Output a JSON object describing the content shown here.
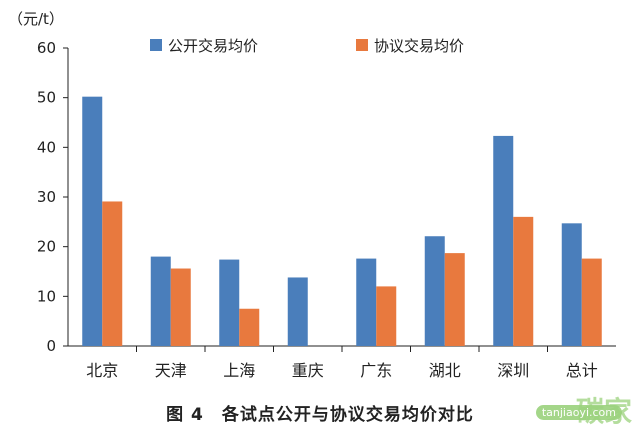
{
  "chart_data": {
    "type": "bar",
    "unit": "（元/t）",
    "categories": [
      "北京",
      "天津",
      "上海",
      "重庆",
      "广东",
      "湖北",
      "深圳",
      "总计"
    ],
    "series": [
      {
        "name": "公开交易均价",
        "color": "#4a7ebb",
        "values": [
          50.2,
          18.0,
          17.4,
          13.8,
          17.6,
          22.1,
          42.3,
          24.7
        ]
      },
      {
        "name": "协议交易均价",
        "color": "#e8793e",
        "values": [
          29.1,
          15.6,
          7.5,
          null,
          12.0,
          18.7,
          26.0,
          17.6
        ]
      }
    ],
    "ylim": [
      0,
      60
    ],
    "yticks": [
      0,
      10,
      20,
      30,
      40,
      50,
      60
    ],
    "legend_position": "top-center",
    "grid": false
  },
  "caption": "图 4　各试点公开与协议交易均价对比",
  "watermark": {
    "text": "碳家",
    "url": "tanjiaoyi.com",
    "color": "#9bd27d"
  }
}
